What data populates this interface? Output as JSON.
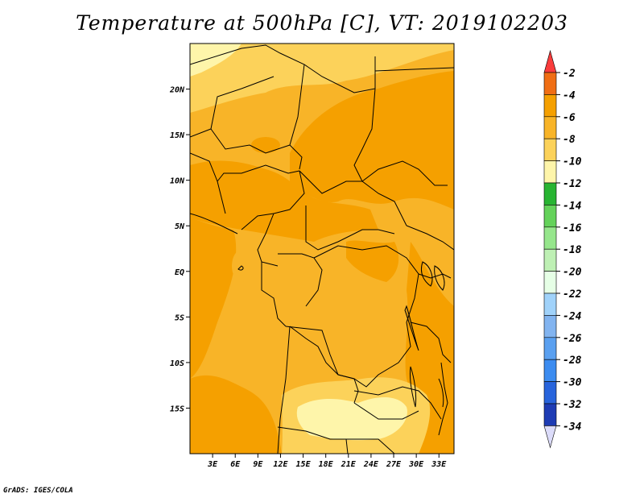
{
  "title": "Temperature at 500hPa [C], VT: 2019102203",
  "credit": "GrADS: IGES/COLA",
  "map": {
    "region": "Central Africa",
    "lon_range": [
      0,
      35
    ],
    "lat_range": [
      -20,
      25
    ],
    "lat_ticks": [
      {
        "value": 20,
        "label": "20N"
      },
      {
        "value": 15,
        "label": "15N"
      },
      {
        "value": 10,
        "label": "10N"
      },
      {
        "value": 5,
        "label": "5N"
      },
      {
        "value": 0,
        "label": "EQ"
      },
      {
        "value": -5,
        "label": "5S"
      },
      {
        "value": -10,
        "label": "10S"
      },
      {
        "value": -15,
        "label": "15S"
      }
    ],
    "lon_ticks": [
      {
        "value": 3,
        "label": "3E"
      },
      {
        "value": 6,
        "label": "6E"
      },
      {
        "value": 9,
        "label": "9E"
      },
      {
        "value": 12,
        "label": "12E"
      },
      {
        "value": 15,
        "label": "15E"
      },
      {
        "value": 18,
        "label": "18E"
      },
      {
        "value": 21,
        "label": "21E"
      },
      {
        "value": 24,
        "label": "24E"
      },
      {
        "value": 27,
        "label": "27E"
      },
      {
        "value": 30,
        "label": "30E"
      },
      {
        "value": 33,
        "label": "33E"
      }
    ]
  },
  "colorbar": {
    "levels": [
      "-2",
      "-4",
      "-6",
      "-8",
      "-10",
      "-12",
      "-14",
      "-16",
      "-18",
      "-20",
      "-22",
      "-24",
      "-26",
      "-28",
      "-30",
      "-32",
      "-34"
    ],
    "colors": [
      "#fa3c3c",
      "#f06e14",
      "#f5a000",
      "#f8b428",
      "#fcd25a",
      "#fef5aa",
      "#28b432",
      "#64d25a",
      "#96e68c",
      "#bef0b4",
      "#e6ffe6",
      "#a0d2fa",
      "#82b4f0",
      "#5aa0f0",
      "#3c8cf0",
      "#2864dc",
      "#1e3cb4",
      "#0a1464",
      "#dcdcfa"
    ]
  }
}
